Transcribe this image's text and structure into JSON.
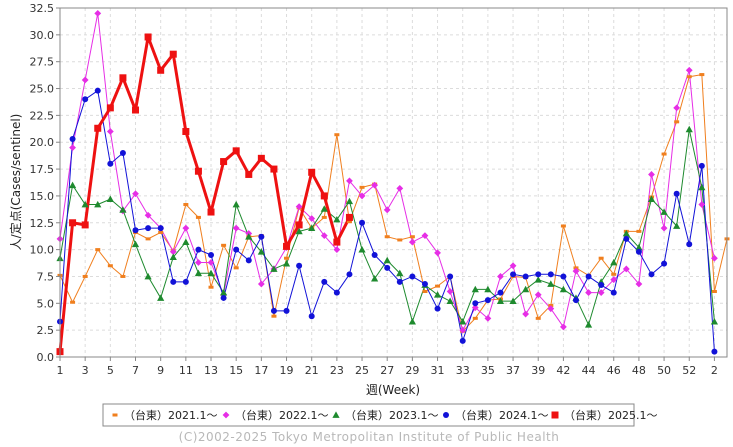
{
  "chart_data": {
    "type": "line",
    "xlabel": "週(Week)",
    "ylabel": "人/定点(Cases/sentinel)",
    "ylim": [
      0,
      32.5
    ],
    "xlim": [
      0,
      53
    ],
    "y_ticks": [
      "0.0",
      "2.5",
      "5.0",
      "7.5",
      "10.0",
      "12.5",
      "15.0",
      "17.5",
      "20.0",
      "22.5",
      "25.0",
      "27.5",
      "30.0",
      "32.5"
    ],
    "x_ticks": [
      "1",
      "3",
      "5",
      "7",
      "9",
      "11",
      "13",
      "15",
      "17",
      "19",
      "21",
      "23",
      "25",
      "27",
      "29",
      "31",
      "33",
      "35",
      "37",
      "39",
      "42",
      "44",
      "46",
      "48",
      "50",
      "52",
      "2"
    ],
    "grid": true,
    "legend_position": "bottom",
    "copyright": "(C)2002-2025 Tokyo Metropolitan Institute of Public Health",
    "series": [
      {
        "name": "（台東）2021.1～",
        "color": "#f07f1e",
        "marker": "square-small",
        "values": [
          7.6,
          5.1,
          7.5,
          10.0,
          8.5,
          7.5,
          11.6,
          11.0,
          11.6,
          9.9,
          14.2,
          13.0,
          6.5,
          10.4,
          8.3,
          11.2,
          11.3,
          3.8,
          9.2,
          13.9,
          12.0,
          13.0,
          20.7,
          12.6,
          15.8,
          16.1,
          11.2,
          10.9,
          11.2,
          6.1,
          6.6,
          7.5,
          2.4,
          3.6,
          5.3,
          5.4,
          7.5,
          7.4,
          3.6,
          4.8,
          12.2,
          8.3,
          7.6,
          9.2,
          7.7,
          11.7,
          11.7,
          14.9,
          18.9,
          21.9,
          26.1,
          26.3,
          6.1,
          11.0
        ]
      },
      {
        "name": "（台東）2022.1～",
        "color": "#e62ee6",
        "marker": "diamond",
        "values": [
          11.0,
          19.5,
          25.8,
          32.0,
          21.0,
          13.6,
          15.2,
          13.2,
          12.0,
          9.8,
          12.0,
          8.8,
          8.8,
          5.8,
          12.0,
          11.5,
          6.8,
          8.2,
          10.2,
          14.0,
          12.9,
          11.3,
          10.0,
          16.4,
          15.0,
          16.0,
          13.7,
          15.7,
          10.7,
          11.3,
          9.7,
          6.1,
          2.5,
          4.6,
          3.6,
          7.5,
          8.5,
          4.0,
          5.8,
          4.5,
          2.8,
          8.0,
          6.0,
          6.0,
          7.2,
          8.2,
          6.8,
          17.0,
          12.0,
          23.2,
          26.7,
          14.2,
          9.2
        ]
      },
      {
        "name": "（台東）2023.1～",
        "color": "#1e8a2e",
        "marker": "triangle",
        "values": [
          9.2,
          16.0,
          14.2,
          14.2,
          14.7,
          13.7,
          10.5,
          7.5,
          5.5,
          9.3,
          10.7,
          7.8,
          7.8,
          6.0,
          14.2,
          11.2,
          9.8,
          8.2,
          8.7,
          11.7,
          12.0,
          13.8,
          12.8,
          14.5,
          10.0,
          7.3,
          9.0,
          7.8,
          3.3,
          6.7,
          5.8,
          5.2,
          3.3,
          6.3,
          6.3,
          5.2,
          5.2,
          6.3,
          7.2,
          6.8,
          6.3,
          5.5,
          3.0,
          7.0,
          8.8,
          11.5,
          10.2,
          14.7,
          13.5,
          12.2,
          21.2,
          15.8,
          3.3
        ]
      },
      {
        "name": "（台東）2024.1～",
        "color": "#1212d8",
        "marker": "circle",
        "values": [
          3.3,
          20.3,
          24.0,
          24.8,
          18.0,
          19.0,
          11.8,
          12.0,
          12.0,
          7.0,
          7.0,
          10.0,
          9.5,
          5.5,
          10.0,
          9.0,
          11.2,
          4.3,
          4.3,
          8.5,
          3.8,
          7.0,
          6.0,
          7.7,
          12.5,
          9.5,
          8.3,
          7.0,
          7.5,
          6.8,
          4.5,
          7.5,
          1.5,
          5.0,
          5.3,
          6.0,
          7.7,
          7.5,
          7.7,
          7.7,
          7.5,
          5.3,
          7.5,
          6.7,
          6.0,
          11.0,
          9.8,
          7.7,
          8.7,
          15.2,
          10.5,
          17.8,
          0.5
        ]
      },
      {
        "name": "（台東）2025.1～",
        "color": "#ee1111",
        "marker": "square-large",
        "values": [
          0.5,
          12.5,
          12.3,
          21.3,
          23.2,
          26.0,
          23.0,
          29.8,
          26.7,
          28.2,
          21.0,
          17.3,
          13.5,
          18.2,
          19.2,
          17.0,
          18.5,
          17.5,
          10.3,
          12.3,
          17.2,
          15.0,
          10.7,
          13.0
        ]
      }
    ]
  }
}
